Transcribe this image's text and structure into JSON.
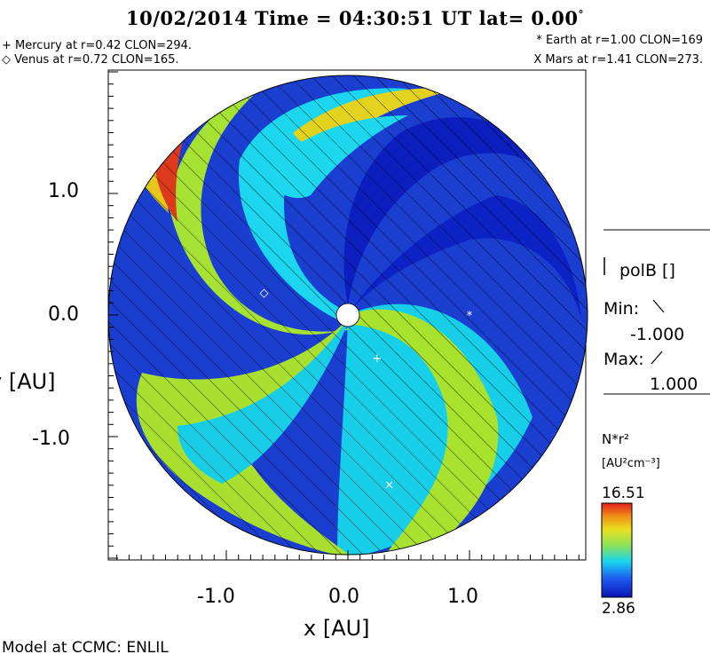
{
  "header": {
    "title": "10/02/2014 Time = 04:30:51 UT lat= 0.00",
    "degree_symbol": "°"
  },
  "planets": {
    "mercury": "+ Mercury at r=0.42 CLON=294.",
    "venus": "◇ Venus at r=0.72 CLON=165.",
    "earth": "* Earth at  r=1.00 CLON=169",
    "mars": "X Mars at r=1.41 CLON=273."
  },
  "axes": {
    "x_title": "x [AU]",
    "y_title": "y [AU]",
    "x_ticks": [
      "-1.0",
      "0.0",
      "1.0"
    ],
    "y_ticks": [
      "1.0",
      "0.0",
      "-1.0"
    ]
  },
  "polarity_legend": {
    "title": "polB []",
    "min_label": "Min:",
    "min_value": "-1.000",
    "max_label": "Max:",
    "max_value": "1.000"
  },
  "colorbar": {
    "label": "N*r²",
    "units": "[AU²cm⁻³]",
    "max": "16.51",
    "min": "2.86"
  },
  "markers": [
    {
      "name": "mercury-marker",
      "glyph": "+",
      "x": 0.24,
      "y": -0.35
    },
    {
      "name": "venus-marker",
      "glyph": "◇",
      "x": -0.69,
      "y": 0.19
    },
    {
      "name": "earth-marker",
      "glyph": "*",
      "x": 1.0,
      "y": 0.0
    },
    {
      "name": "mars-marker",
      "glyph": "×",
      "x": 0.34,
      "y": -1.39
    }
  ],
  "footer": {
    "credit": "Model at CCMC: ENLIL"
  },
  "colors": {
    "background": "#1733c9",
    "cyan": "#19d7ea",
    "green": "#b2e42a",
    "yellow": "#e8d31d",
    "red": "#d8331c",
    "blue_deep": "#0b1ec2"
  }
}
